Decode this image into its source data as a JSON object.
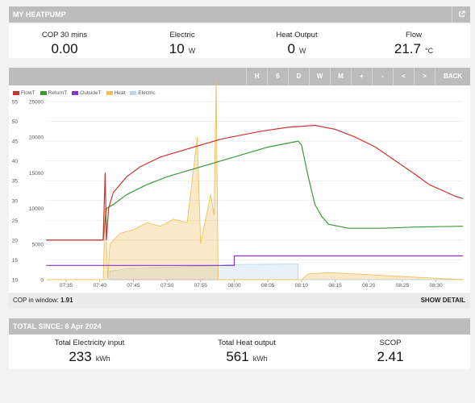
{
  "header": {
    "title": "MY HEATPUMP",
    "icon": "external-link-icon"
  },
  "metrics": [
    {
      "label": "COP 30 mins",
      "value": "0.00",
      "unit": ""
    },
    {
      "label": "Electric",
      "value": "10",
      "unit": "W"
    },
    {
      "label": "Heat Output",
      "value": "0",
      "unit": "W"
    },
    {
      "label": "Flow",
      "value": "21.7",
      "unit": "°C"
    }
  ],
  "toolbar": {
    "buttons": [
      "H",
      "6",
      "D",
      "W",
      "M",
      "+",
      "-",
      "<",
      ">",
      "BACK"
    ]
  },
  "legend": [
    {
      "name": "FlowT",
      "color": "#cc3333"
    },
    {
      "name": "ReturnT",
      "color": "#3a9a3a"
    },
    {
      "name": "OutsideT",
      "color": "#8833cc"
    },
    {
      "name": "Heat",
      "color": "#f0c060"
    },
    {
      "name": "Electric",
      "color": "#b8d8f0"
    }
  ],
  "chart_data": {
    "type": "line",
    "x_ticks": [
      "07:35",
      "07:40",
      "07:45",
      "07:50",
      "07:55",
      "08:00",
      "08:05",
      "08:10",
      "08:15",
      "08:20",
      "08:25",
      "08:30"
    ],
    "y_left_ticks": [
      "10",
      "15",
      "20",
      "25",
      "30",
      "35",
      "40",
      "45",
      "50",
      "55"
    ],
    "y_right_ticks": [
      "0",
      "5000",
      "10000",
      "15000",
      "20000",
      "25000"
    ],
    "y_left_range": [
      10,
      55
    ],
    "y_right_range": [
      0,
      25000
    ],
    "x_range_minutes": [
      "07:32",
      "08:34"
    ],
    "series": [
      {
        "name": "FlowT",
        "axis": "left",
        "color": "#cc3333",
        "points": [
          [
            0,
            20.0
          ],
          [
            8.5,
            20.0
          ],
          [
            8.8,
            37.0
          ],
          [
            9.0,
            20.0
          ],
          [
            9.3,
            28.0
          ],
          [
            10,
            32.0
          ],
          [
            12,
            36.0
          ],
          [
            14,
            38.5
          ],
          [
            17,
            41.0
          ],
          [
            20,
            42.5
          ],
          [
            23,
            44.0
          ],
          [
            26,
            45.5
          ],
          [
            29,
            46.5
          ],
          [
            32,
            47.5
          ],
          [
            36,
            48.5
          ],
          [
            40,
            49.0
          ],
          [
            43,
            48.0
          ],
          [
            46,
            46.0
          ],
          [
            49,
            43.5
          ],
          [
            52,
            40.0
          ],
          [
            55,
            36.5
          ],
          [
            57,
            34.0
          ],
          [
            59,
            32.5
          ],
          [
            61,
            31.0
          ],
          [
            62,
            30.5
          ]
        ]
      },
      {
        "name": "ReturnT",
        "axis": "left",
        "color": "#3a9a3a",
        "points": [
          [
            0,
            20.0
          ],
          [
            8.5,
            20.0
          ],
          [
            9.0,
            28.0
          ],
          [
            10,
            29.0
          ],
          [
            12,
            31.5
          ],
          [
            15,
            34.0
          ],
          [
            18,
            36.0
          ],
          [
            21,
            37.5
          ],
          [
            24,
            39.0
          ],
          [
            27,
            40.5
          ],
          [
            30,
            42.0
          ],
          [
            33,
            43.5
          ],
          [
            36,
            44.5
          ],
          [
            37.5,
            45.0
          ],
          [
            38,
            44.0
          ],
          [
            39,
            36.0
          ],
          [
            40,
            29.0
          ],
          [
            41,
            26.0
          ],
          [
            42,
            24.0
          ],
          [
            45,
            23.0
          ],
          [
            50,
            23.0
          ],
          [
            55,
            23.3
          ],
          [
            62,
            23.5
          ]
        ]
      },
      {
        "name": "OutsideT",
        "axis": "left",
        "color": "#8833cc",
        "points": [
          [
            0,
            13.6
          ],
          [
            28,
            13.6
          ],
          [
            28,
            16.0
          ],
          [
            62,
            16.0
          ]
        ]
      },
      {
        "name": "Heat",
        "axis": "right",
        "color": "#f0c060",
        "points": [
          [
            0,
            0
          ],
          [
            8.5,
            0
          ],
          [
            8.8,
            10000
          ],
          [
            9.2,
            0
          ],
          [
            9.5,
            5000
          ],
          [
            11,
            6500
          ],
          [
            13,
            7000
          ],
          [
            15,
            8000
          ],
          [
            17,
            7500
          ],
          [
            19,
            8500
          ],
          [
            21,
            8000
          ],
          [
            22.5,
            20000
          ],
          [
            23,
            5000
          ],
          [
            24.5,
            12000
          ],
          [
            25,
            9000
          ],
          [
            25.3,
            28000
          ],
          [
            25.6,
            0
          ],
          [
            38,
            0
          ],
          [
            39,
            800
          ],
          [
            42,
            1000
          ],
          [
            46,
            800
          ],
          [
            50,
            600
          ],
          [
            54,
            400
          ],
          [
            58,
            200
          ],
          [
            62,
            0
          ]
        ]
      },
      {
        "name": "Electric",
        "axis": "right",
        "color": "#b8d8f0",
        "points": [
          [
            0,
            0
          ],
          [
            9.5,
            0
          ],
          [
            9.5,
            1200
          ],
          [
            12,
            1500
          ],
          [
            16,
            1700
          ],
          [
            20,
            1800
          ],
          [
            24,
            1900
          ],
          [
            26,
            2000
          ],
          [
            27,
            2100
          ],
          [
            36,
            2200
          ],
          [
            37.5,
            2200
          ],
          [
            37.5,
            0
          ],
          [
            62,
            0
          ]
        ]
      }
    ]
  },
  "cop_window": {
    "label": "COP in window:",
    "value": "1.91",
    "action": "SHOW DETAIL"
  },
  "totals": {
    "title": "TOTAL SINCE: 8 Apr 2024",
    "items": [
      {
        "label": "Total Electricity input",
        "value": "233",
        "unit": "kWh"
      },
      {
        "label": "Total Heat output",
        "value": "561",
        "unit": "kWh"
      },
      {
        "label": "SCOP",
        "value": "2.41",
        "unit": ""
      }
    ]
  }
}
